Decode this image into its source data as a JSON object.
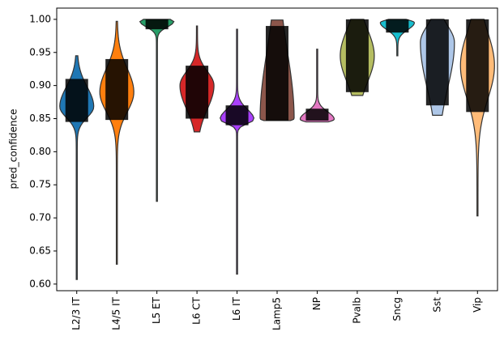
{
  "chart_data": {
    "type": "violin",
    "ylabel": "pred_confidence",
    "categories": [
      "L2/3 IT",
      "L4/5 IT",
      "L5 ET",
      "L6 CT",
      "L6 IT",
      "Lamp5",
      "NP",
      "Pvalb",
      "Sncg",
      "Sst",
      "Vip"
    ],
    "colors": [
      "#1f77b4",
      "#ff7f0e",
      "#279e68",
      "#d62728",
      "#aa40fc",
      "#8c564b",
      "#e377c2",
      "#b5bd61",
      "#17becf",
      "#aec7e8",
      "#ffbb78"
    ],
    "min": [
      0.607,
      0.63,
      0.725,
      0.83,
      0.615,
      0.847,
      0.845,
      0.885,
      0.945,
      0.855,
      0.703
    ],
    "max": [
      0.945,
      0.997,
      1.0,
      0.99,
      0.985,
      0.999,
      0.955,
      1.0,
      1.0,
      1.0,
      1.0
    ],
    "peak": [
      0.868,
      0.89,
      0.997,
      0.9,
      0.849,
      0.85,
      0.849,
      0.945,
      0.995,
      0.965,
      0.93
    ],
    "core_low": [
      0.845,
      0.848,
      0.985,
      0.85,
      0.84,
      0.847,
      0.847,
      0.89,
      0.98,
      0.87,
      0.86
    ],
    "core_high": [
      0.91,
      0.94,
      1.0,
      0.93,
      0.87,
      0.99,
      0.865,
      1.0,
      1.0,
      1.0,
      1.0
    ],
    "ylim": [
      0.59,
      1.017
    ],
    "yticks": [
      {
        "value": 0.6,
        "label": "0.60"
      },
      0.65,
      {
        "value": 0.7,
        "label": "0.70"
      },
      0.75,
      {
        "value": 0.8,
        "label": "0.80"
      },
      0.85,
      {
        "value": 0.9,
        "label": "0.90"
      },
      0.95,
      {
        "value": 1.0,
        "label": "1.00"
      }
    ]
  }
}
